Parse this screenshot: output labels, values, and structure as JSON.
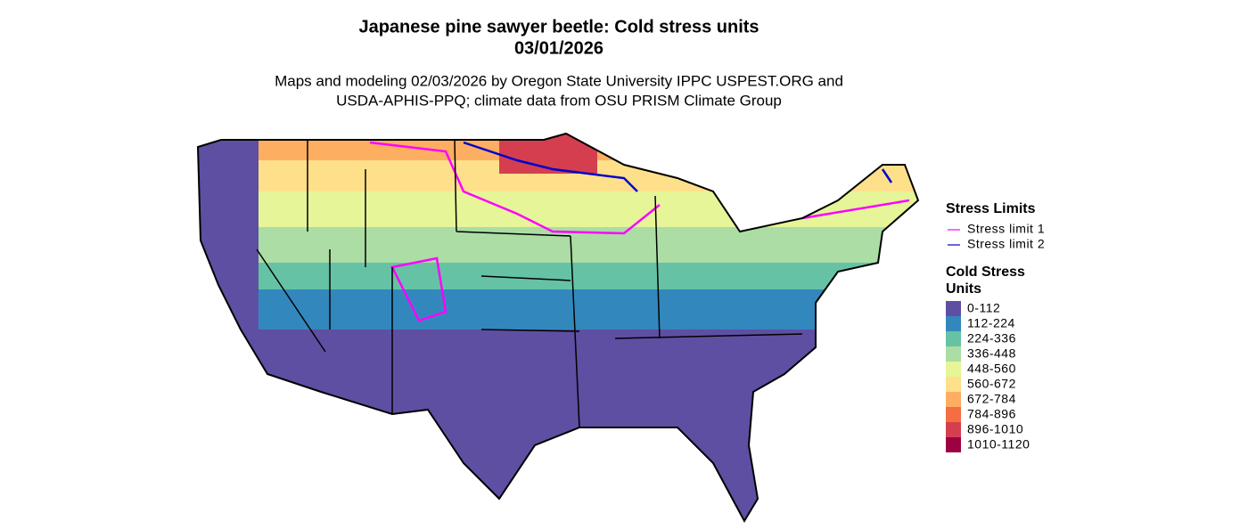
{
  "title": [
    "Japanese pine sawyer beetle: Cold stress units",
    "03/01/2026"
  ],
  "subtitle": [
    "Maps and modeling 02/03/2026 by Oregon State University IPPC USPEST.ORG and",
    "USDA-APHIS-PPQ; climate data from OSU PRISM Climate Group"
  ],
  "legend": {
    "limits": {
      "title": "Stress Limits",
      "items": [
        {
          "label": "Stress limit 1",
          "color": "#ff00ff"
        },
        {
          "label": "Stress limit 2",
          "color": "#0000cd"
        }
      ]
    },
    "units": {
      "title": [
        "Cold Stress",
        "Units"
      ],
      "items": [
        {
          "label": "0-112",
          "color": "#5e4fa2"
        },
        {
          "label": "112-224",
          "color": "#3288bd"
        },
        {
          "label": "224-336",
          "color": "#66c2a5"
        },
        {
          "label": "336-448",
          "color": "#abdda4"
        },
        {
          "label": "448-560",
          "color": "#e6f598"
        },
        {
          "label": "560-672",
          "color": "#fee08b"
        },
        {
          "label": "672-784",
          "color": "#fdae61"
        },
        {
          "label": "784-896",
          "color": "#f46d43"
        },
        {
          "label": "896-1010",
          "color": "#d53e4f"
        },
        {
          "label": "1010-1120",
          "color": "#9e0142"
        }
      ]
    }
  }
}
